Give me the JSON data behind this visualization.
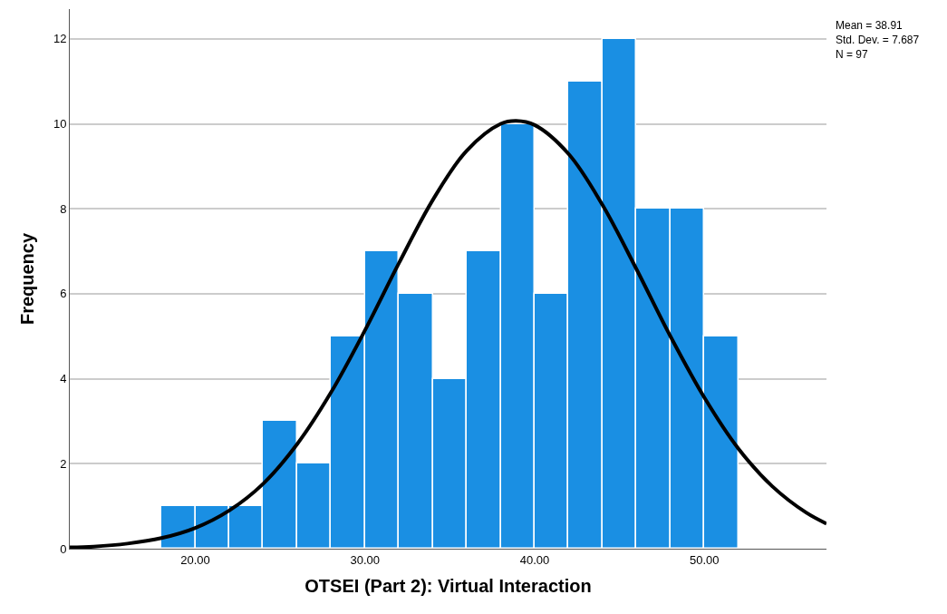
{
  "chart_data": {
    "type": "histogram",
    "xlabel": "OTSEI (Part 2): Virtual Interaction",
    "ylabel": "Frequency",
    "bins": [
      18,
      20,
      22,
      24,
      26,
      28,
      30,
      32,
      34,
      36,
      38,
      40,
      42,
      44,
      46,
      48,
      50,
      52
    ],
    "values": [
      1,
      1,
      1,
      3,
      2,
      5,
      7,
      6,
      4,
      7,
      10,
      6,
      11,
      12,
      8,
      8,
      5
    ],
    "color": "#1a8fe3",
    "series": [
      {
        "type": "line",
        "color": "#000000",
        "x": [
          12.6,
          14,
          16,
          18,
          20,
          22,
          24,
          26,
          28,
          30,
          32,
          34,
          36,
          38,
          38.91,
          40,
          42,
          44,
          46,
          48,
          50,
          52,
          54,
          56,
          57.2
        ],
        "values": [
          0.03,
          0.05,
          0.12,
          0.25,
          0.49,
          0.9,
          1.53,
          2.46,
          3.68,
          5.14,
          6.72,
          8.21,
          9.37,
          10.0,
          10.07,
          9.97,
          9.29,
          8.09,
          6.58,
          5.0,
          3.56,
          2.36,
          1.47,
          0.85,
          0.59
        ]
      }
    ],
    "xlim": [
      12.6,
      57.2
    ],
    "ylim": [
      0,
      12.7
    ],
    "xticks": [
      {
        "value": 20,
        "label": "20.00"
      },
      {
        "value": 30,
        "label": "30.00"
      },
      {
        "value": 40,
        "label": "40.00"
      },
      {
        "value": 50,
        "label": "50.00"
      }
    ],
    "yticks": [
      0,
      2,
      4,
      6,
      8,
      10,
      12
    ],
    "grid": "y",
    "annotations": [
      "Mean = 38.91",
      "Std. Dev. = 7.687",
      "N = 97"
    ]
  }
}
